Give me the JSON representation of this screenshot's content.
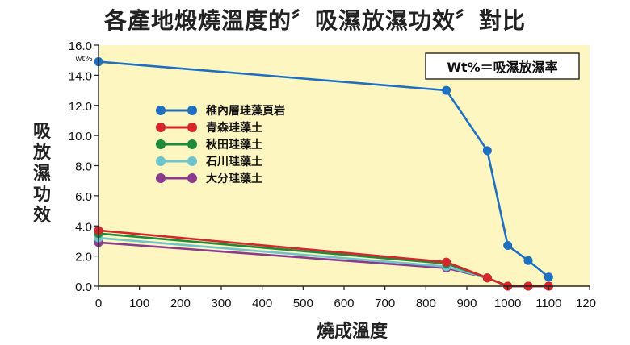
{
  "title": "各產地煅燒溫度的〞吸濕放濕功效〞對比",
  "chart_data": {
    "type": "line",
    "title": "各產地煅燒溫度的〞吸濕放濕功效〞對比",
    "xlabel": "燒成溫度",
    "ylabel": "吸放濕功效",
    "y_unit": "wt%",
    "note": "Wt%＝吸濕放濕率",
    "xlim": [
      0,
      1200
    ],
    "ylim": [
      0,
      16
    ],
    "x_ticks": [
      "0",
      "100",
      "200",
      "300",
      "400",
      "500",
      "600",
      "700",
      "800",
      "900",
      "1000",
      "1100",
      "120"
    ],
    "y_ticks": [
      "0.0",
      "2.0",
      "4.0",
      "6.0",
      "8.0",
      "10.0",
      "12.0",
      "14.0",
      "16.0"
    ],
    "grid": false,
    "legend_position": "upper-left",
    "background": "#fef6c0",
    "series": [
      {
        "name": "稚內層珪藻頁岩",
        "color": "#1f6fc1",
        "points": [
          [
            0,
            14.9
          ],
          [
            850,
            13.0
          ],
          [
            950,
            9.0
          ],
          [
            1000,
            2.7
          ],
          [
            1050,
            1.7
          ],
          [
            1100,
            0.6
          ]
        ]
      },
      {
        "name": "青森珪藻土",
        "color": "#d4262b",
        "points": [
          [
            0,
            3.7
          ],
          [
            850,
            1.6
          ],
          [
            950,
            0.55
          ],
          [
            1000,
            0.0
          ],
          [
            1050,
            0.0
          ],
          [
            1100,
            0.0
          ]
        ]
      },
      {
        "name": "秋田珪藻土",
        "color": "#1e8a3c",
        "points": [
          [
            0,
            3.5
          ],
          [
            850,
            1.5
          ],
          [
            950,
            0.55
          ],
          [
            1000,
            0.0
          ],
          [
            1050,
            0.0
          ],
          [
            1100,
            0.0
          ]
        ]
      },
      {
        "name": "石川珪藻土",
        "color": "#6ec3cd",
        "points": [
          [
            0,
            3.2
          ],
          [
            850,
            1.3
          ],
          [
            950,
            0.55
          ],
          [
            1000,
            0.0
          ],
          [
            1050,
            0.0
          ],
          [
            1100,
            0.0
          ]
        ]
      },
      {
        "name": "大分珪藻土",
        "color": "#8b3a8f",
        "points": [
          [
            0,
            2.9
          ],
          [
            850,
            1.2
          ],
          [
            950,
            0.55
          ],
          [
            1000,
            0.0
          ],
          [
            1050,
            0.0
          ],
          [
            1100,
            0.0
          ]
        ]
      }
    ]
  }
}
